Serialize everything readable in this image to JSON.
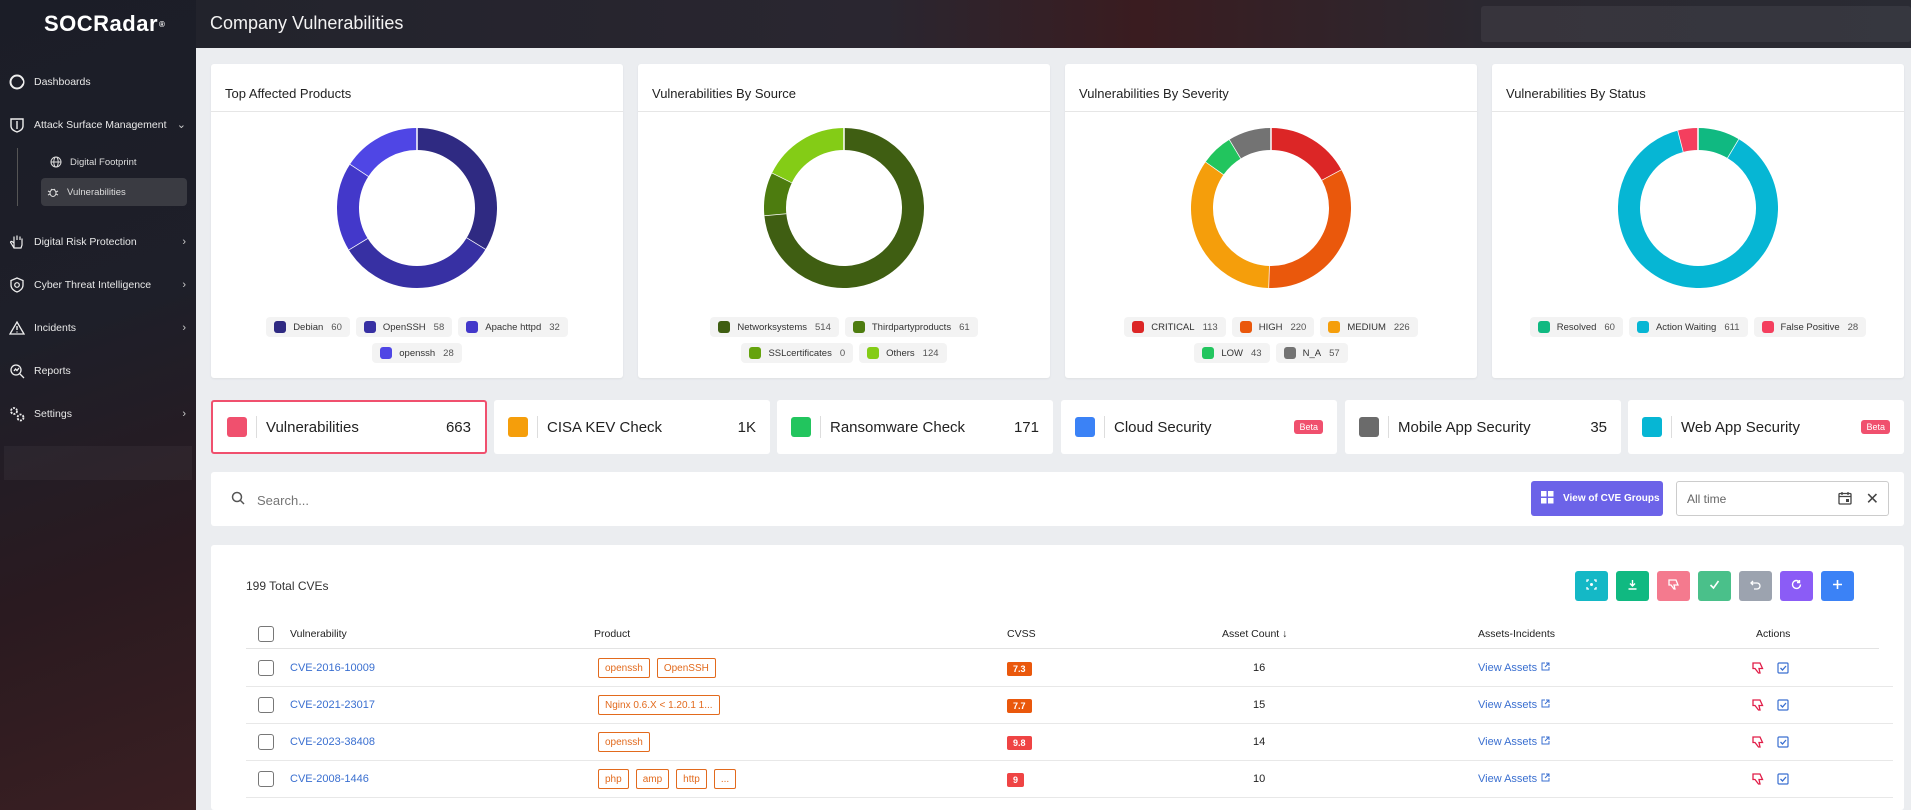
{
  "brand": {
    "name": "SOCRadar",
    "mark": "®"
  },
  "header": {
    "title": "Company Vulnerabilities"
  },
  "sidebar": {
    "items": [
      {
        "label": "Dashboards"
      },
      {
        "label": "Attack Surface Management"
      },
      {
        "label": "Digital Risk Protection"
      },
      {
        "label": "Cyber Threat Intelligence"
      },
      {
        "label": "Incidents"
      },
      {
        "label": "Reports"
      },
      {
        "label": "Settings"
      }
    ],
    "sub_items": [
      {
        "label": "Digital Footprint"
      },
      {
        "label": "Vulnerabilities"
      }
    ]
  },
  "charts": [
    {
      "title": "Top Affected Products",
      "legend": [
        {
          "name": "Debian",
          "count": "60",
          "color": "#2f2a82"
        },
        {
          "name": "OpenSSH",
          "count": "58",
          "color": "#3730a3"
        },
        {
          "name": "Apache httpd",
          "count": "32",
          "color": "#4338ca"
        },
        {
          "name": "openssh",
          "count": "28",
          "color": "#4f46e5"
        }
      ]
    },
    {
      "title": "Vulnerabilities By Source",
      "legend": [
        {
          "name": "Networksystems",
          "count": "514",
          "color": "#3f5e12"
        },
        {
          "name": "Thirdpartyproducts",
          "count": "61",
          "color": "#4d7c0f"
        },
        {
          "name": "SSLcertificates",
          "count": "0",
          "color": "#65a30d"
        },
        {
          "name": "Others",
          "count": "124",
          "color": "#84cc16"
        }
      ]
    },
    {
      "title": "Vulnerabilities By Severity",
      "legend": [
        {
          "name": "CRITICAL",
          "count": "113",
          "color": "#dc2626"
        },
        {
          "name": "HIGH",
          "count": "220",
          "color": "#ea580c"
        },
        {
          "name": "MEDIUM",
          "count": "226",
          "color": "#f59e0b"
        },
        {
          "name": "LOW",
          "count": "43",
          "color": "#22c55e"
        },
        {
          "name": "N_A",
          "count": "57",
          "color": "#737373"
        }
      ]
    },
    {
      "title": "Vulnerabilities By Status",
      "legend": [
        {
          "name": "Resolved",
          "count": "60",
          "color": "#10b981"
        },
        {
          "name": "Action Waiting",
          "count": "611",
          "color": "#06b6d4"
        },
        {
          "name": "False Positive",
          "count": "28",
          "color": "#f43f5e"
        }
      ]
    }
  ],
  "tabs": [
    {
      "label": "Vulnerabilities",
      "count": "663",
      "color": "#f0506e"
    },
    {
      "label": "CISA KEV Check",
      "count": "1K",
      "color": "#f59e0b"
    },
    {
      "label": "Ransomware Check",
      "count": "171",
      "color": "#22c55e"
    },
    {
      "label": "Cloud Security",
      "badge": "Beta",
      "color": "#3b82f6"
    },
    {
      "label": "Mobile App Security",
      "count": "35",
      "color": "#6b6b6b"
    },
    {
      "label": "Web App Security",
      "badge": "Beta",
      "color": "#06b6d4"
    }
  ],
  "search": {
    "placeholder": "Search...",
    "cve_groups_label": "View of CVE Groups",
    "date_value": "All time"
  },
  "table": {
    "total": "199 Total CVEs",
    "columns": [
      "Vulnerability",
      "Product",
      "CVSS",
      "Asset Count",
      "Assets-Incidents",
      "Actions"
    ],
    "view_assets_label": "View Assets",
    "rows": [
      {
        "cve": "CVE-2016-10009",
        "products": [
          "openssh",
          "OpenSSH"
        ],
        "cvss": "7.3",
        "cvss_color": "#ea580c",
        "assets": "16"
      },
      {
        "cve": "CVE-2021-23017",
        "products": [
          "Nginx 0.6.X < 1.20.1 1..."
        ],
        "cvss": "7.7",
        "cvss_color": "#ea580c",
        "assets": "15"
      },
      {
        "cve": "CVE-2023-38408",
        "products": [
          "openssh"
        ],
        "cvss": "9.8",
        "cvss_color": "#ef4444",
        "assets": "14"
      },
      {
        "cve": "CVE-2008-1446",
        "products": [
          "php",
          "amp",
          "http",
          "..."
        ],
        "cvss": "9",
        "cvss_color": "#ef4444",
        "assets": "10"
      }
    ]
  },
  "toolbar_colors": [
    "#14b8c6",
    "#10b981",
    "#f47a8e",
    "#4ac08a",
    "#9ca3af",
    "#8b5cf6",
    "#3b82f6"
  ]
}
